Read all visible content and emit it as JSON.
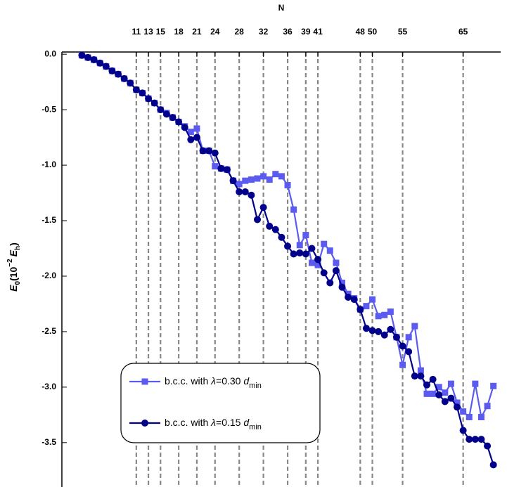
{
  "chart_data": {
    "type": "line",
    "x_label": "N",
    "y_label": [
      "E",
      "0",
      "(10",
      "−2",
      "E",
      "h",
      ")"
    ],
    "x": [
      2,
      3,
      4,
      5,
      6,
      7,
      8,
      9,
      10,
      11,
      12,
      13,
      14,
      15,
      16,
      17,
      18,
      19,
      20,
      21,
      22,
      23,
      24,
      25,
      26,
      27,
      28,
      29,
      30,
      31,
      32,
      33,
      34,
      35,
      36,
      37,
      38,
      39,
      40,
      41,
      42,
      43,
      44,
      45,
      46,
      47,
      48,
      49,
      50,
      51,
      52,
      53,
      54,
      55,
      56,
      57,
      58,
      59,
      60,
      61,
      62,
      63,
      64,
      65,
      66,
      67,
      68,
      69,
      70
    ],
    "series": [
      {
        "name": [
          "b.c.c. with ",
          "λ",
          "=0.30 ",
          "d",
          "min"
        ],
        "color": "#5b5bf0",
        "marker": "square",
        "values": [
          -0.01,
          -0.03,
          -0.05,
          -0.08,
          -0.11,
          -0.15,
          -0.18,
          -0.22,
          -0.26,
          -0.32,
          -0.35,
          -0.4,
          -0.44,
          -0.5,
          -0.53,
          -0.57,
          -0.61,
          -0.65,
          -0.7,
          -0.67,
          -0.87,
          -0.87,
          -1.01,
          -1.03,
          -1.04,
          -1.14,
          -1.17,
          -1.14,
          -1.13,
          -1.12,
          -1.1,
          -1.13,
          -1.08,
          -1.1,
          -1.18,
          -1.4,
          -1.72,
          -1.63,
          -1.88,
          -1.9,
          -1.71,
          -1.77,
          -1.88,
          -2.06,
          -2.16,
          -2.2,
          -2.3,
          -2.27,
          -2.21,
          -2.36,
          -2.35,
          -2.32,
          -2.55,
          -2.8,
          -2.55,
          -2.45,
          -2.85,
          -3.06,
          -3.06,
          -3.0,
          -3.05,
          -2.97,
          -3.14,
          -3.22,
          -3.27,
          -2.97,
          -3.27,
          -3.17,
          -2.99
        ]
      },
      {
        "name": [
          "b.c.c. with ",
          "λ",
          "=0.15 ",
          "d",
          "min"
        ],
        "color": "#00008b",
        "marker": "circle",
        "values": [
          -0.01,
          -0.03,
          -0.05,
          -0.08,
          -0.11,
          -0.15,
          -0.18,
          -0.22,
          -0.26,
          -0.32,
          -0.35,
          -0.4,
          -0.44,
          -0.5,
          -0.54,
          -0.57,
          -0.61,
          -0.66,
          -0.77,
          -0.75,
          -0.87,
          -0.87,
          -0.89,
          -1.03,
          -1.04,
          -1.14,
          -1.24,
          -1.24,
          -1.27,
          -1.49,
          -1.38,
          -1.55,
          -1.58,
          -1.65,
          -1.73,
          -1.8,
          -1.79,
          -1.8,
          -1.75,
          -1.85,
          -1.97,
          -2.06,
          -1.95,
          -2.1,
          -2.19,
          -2.21,
          -2.3,
          -2.47,
          -2.49,
          -2.5,
          -2.53,
          -2.48,
          -2.55,
          -2.63,
          -2.68,
          -2.9,
          -2.9,
          -2.98,
          -2.93,
          -3.07,
          -3.13,
          -3.1,
          -3.18,
          -3.39,
          -3.47,
          -3.47,
          -3.47,
          -3.53,
          -3.7
        ]
      }
    ],
    "xlim": [
      -1.3,
      71.2
    ],
    "xticks": [
      11,
      13,
      15,
      18,
      21,
      24,
      28,
      32,
      36,
      39,
      41,
      48,
      50,
      55,
      65
    ],
    "ylim": [
      -3.9,
      0.02
    ],
    "yticks": [
      {
        "value": 0,
        "label": "0.0"
      },
      {
        "value": -0.5,
        "label": "-0.5"
      },
      {
        "value": -1,
        "label": "-1.0"
      },
      {
        "value": -1.5,
        "label": "-1.5"
      },
      {
        "value": -2,
        "label": "-2.0"
      },
      {
        "value": -2.5,
        "label": "-2.5"
      },
      {
        "value": -3,
        "label": "-3.0"
      },
      {
        "value": -3.5,
        "label": "-3.5"
      }
    ],
    "grid": true
  }
}
